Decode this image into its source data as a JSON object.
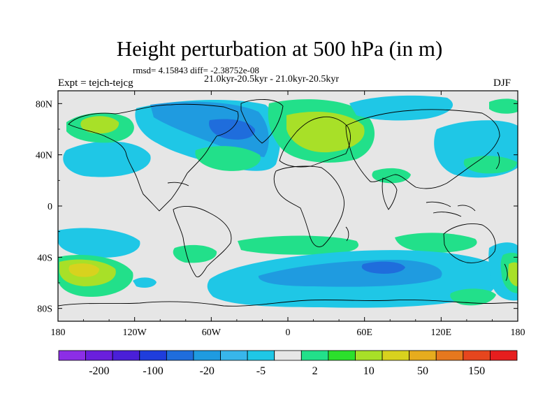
{
  "plot": {
    "title": "Height perturbation at 500 hPa (in m)",
    "stats_line": "rmsd= 4.15843 diff= -2.38752e-08",
    "period_line": "21.0kyr-20.5kyr - 21.0kyr-20.5kyr",
    "experiment_label": "Expt = tejch-tejcg",
    "season_label": "DJF"
  },
  "axes": {
    "lon_ticks": [
      "180",
      "120W",
      "60W",
      "0",
      "60E",
      "120E",
      "180"
    ],
    "lat_ticks": [
      "80N",
      "40N",
      "0",
      "40S",
      "80S"
    ],
    "lon_values": [
      -180,
      -120,
      -60,
      0,
      60,
      120,
      180
    ],
    "lat_values": [
      80,
      40,
      0,
      -40,
      -80
    ],
    "lon_range": [
      -180,
      180
    ],
    "lat_range": [
      -90,
      90
    ]
  },
  "colorbar": {
    "colors": [
      "#8c2ee6",
      "#6a1fdc",
      "#4a1fd8",
      "#1f3ddc",
      "#1f6ddc",
      "#1f9be0",
      "#38b6ea",
      "#1fc7e6",
      "#e6e6e6",
      "#22e08a",
      "#2ce02c",
      "#a8e028",
      "#d8d21e",
      "#e6ac1e",
      "#e6781e",
      "#e6461e",
      "#e61e1e"
    ],
    "labels": [
      "-200",
      "-100",
      "-20",
      "-5",
      "2",
      "10",
      "50",
      "150"
    ]
  },
  "colors": {
    "background": "#e6e6e6",
    "deep_blue": "#1f6ddc",
    "mid_blue": "#1f9be0",
    "light_blue": "#1fc7e6",
    "green": "#22e08a",
    "lime": "#a8e028",
    "yellow": "#d8d21e"
  }
}
